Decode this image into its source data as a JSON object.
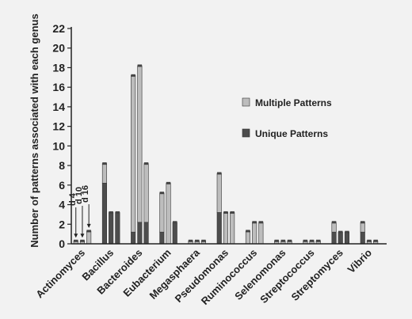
{
  "chart_data": {
    "type": "bar",
    "stacked": true,
    "ylabel": "Number of patterns associated with each genus",
    "ylim": [
      0,
      22
    ],
    "yticks": [
      0,
      2,
      4,
      6,
      8,
      10,
      12,
      14,
      16,
      18,
      20,
      22
    ],
    "legend": {
      "placement": "right",
      "entries": [
        {
          "name": "Multiple Patterns",
          "color": "#bdbdbd"
        },
        {
          "name": "Unique Patterns",
          "color": "#4d4d4d"
        }
      ]
    },
    "categories": [
      "Actinomyces",
      "Bacillus",
      "Bacteroides",
      "Eubacterium",
      "Megasphaera",
      "Pseudomonas",
      "Ruminococcus",
      "Selenomonas",
      "Streptococcus",
      "Streptomyces",
      "Vibrio"
    ],
    "groups": [
      {
        "category": "Actinomyces",
        "bars": [
          {
            "unique": 0,
            "multiple": 0.3
          },
          {
            "unique": 0,
            "multiple": 0.3
          },
          {
            "unique": 0,
            "multiple": 1.3
          }
        ]
      },
      {
        "category": "Bacillus",
        "bars": [
          {
            "unique": 6.2,
            "multiple": 2
          },
          {
            "unique": 3.2,
            "multiple": 0
          },
          {
            "unique": 3.2,
            "multiple": 0
          }
        ]
      },
      {
        "category": "Bacteroides",
        "bars": [
          {
            "unique": 1.2,
            "multiple": 16
          },
          {
            "unique": 2.2,
            "multiple": 16
          },
          {
            "unique": 2.2,
            "multiple": 6
          }
        ]
      },
      {
        "category": "Eubacterium",
        "bars": [
          {
            "unique": 1.2,
            "multiple": 4
          },
          {
            "unique": 0,
            "multiple": 6.2
          },
          {
            "unique": 2.2,
            "multiple": 0
          }
        ]
      },
      {
        "category": "Megasphaera",
        "bars": [
          {
            "unique": 0,
            "multiple": 0.3
          },
          {
            "unique": 0,
            "multiple": 0.3
          },
          {
            "unique": 0,
            "multiple": 0.3
          }
        ]
      },
      {
        "category": "Pseudomonas",
        "bars": [
          {
            "unique": 3.2,
            "multiple": 4
          },
          {
            "unique": 0,
            "multiple": 3.2
          },
          {
            "unique": 0,
            "multiple": 3.2
          }
        ]
      },
      {
        "category": "Ruminococcus",
        "bars": [
          {
            "unique": 0,
            "multiple": 1.3
          },
          {
            "unique": 0,
            "multiple": 2.2
          },
          {
            "unique": 0,
            "multiple": 2.2
          }
        ]
      },
      {
        "category": "Selenomonas",
        "bars": [
          {
            "unique": 0,
            "multiple": 0.3
          },
          {
            "unique": 0,
            "multiple": 0.3
          },
          {
            "unique": 0,
            "multiple": 0.3
          }
        ]
      },
      {
        "category": "Streptococcus",
        "bars": [
          {
            "unique": 0,
            "multiple": 0.3
          },
          {
            "unique": 0,
            "multiple": 0.3
          },
          {
            "unique": 0,
            "multiple": 0.3
          }
        ]
      },
      {
        "category": "Streptomyces",
        "bars": [
          {
            "unique": 1.2,
            "multiple": 1
          },
          {
            "unique": 1.2,
            "multiple": 0
          },
          {
            "unique": 1.2,
            "multiple": 0
          }
        ]
      },
      {
        "category": "Vibrio",
        "bars": [
          {
            "unique": 1.2,
            "multiple": 1
          },
          {
            "unique": 0,
            "multiple": 0.3
          },
          {
            "unique": 0,
            "multiple": 0.3
          }
        ]
      }
    ],
    "annotations": [
      {
        "text": "d 4",
        "group": 0,
        "bar": 0
      },
      {
        "text": "d 10",
        "group": 0,
        "bar": 1
      },
      {
        "text": "d 16",
        "group": 0,
        "bar": 2
      }
    ]
  }
}
